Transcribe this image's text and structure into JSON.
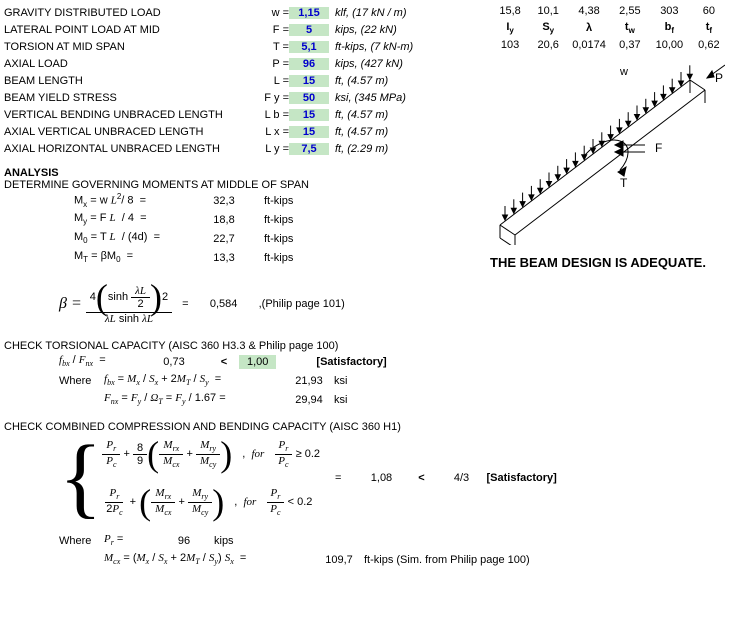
{
  "inputs": [
    {
      "label": "GRAVITY DISTRIBUTED LOAD",
      "sym": "w =",
      "val": "1,15",
      "unit": "klf, (17 kN / m)"
    },
    {
      "label": "LATERAL POINT LOAD AT MID",
      "sym": "F =",
      "val": "5",
      "unit": "kips, (22 kN)"
    },
    {
      "label": "TORSION AT MID SPAN",
      "sym": "T =",
      "val": "5,1",
      "unit": "ft-kips, (7 kN-m)"
    },
    {
      "label": "AXIAL LOAD",
      "sym": "P =",
      "val": "96",
      "unit": "kips, (427 kN)"
    },
    {
      "label": "BEAM LENGTH",
      "sym": "L =",
      "val": "15",
      "unit": "ft, (4.57 m)"
    },
    {
      "label": "BEAM YIELD STRESS",
      "sym": "F y =",
      "val": "50",
      "unit": "ksi, (345 MPa)"
    },
    {
      "label": "VERTICAL BENDING UNBRACED LENGTH",
      "sym": "L b =",
      "val": "15",
      "unit": "ft, (4.57 m)"
    },
    {
      "label": "AXIAL VERTICAL UNBRACED LENGTH",
      "sym": "L x =",
      "val": "15",
      "unit": "ft, (4.57 m)"
    },
    {
      "label": "AXIAL HORIZONTAL UNBRACED LENGTH",
      "sym": "L y =",
      "val": "7,5",
      "unit": "ft, (2.29 m)"
    }
  ],
  "proptable": {
    "r1": [
      "15,8",
      "10,1",
      "4,38",
      "2,55",
      "303",
      "60"
    ],
    "h2": [
      "I_y",
      "S_y",
      "λ",
      "t_w",
      "b_f",
      "t_f"
    ],
    "r2": [
      "103",
      "20,6",
      "0,0174",
      "0,37",
      "10,00",
      "0,62"
    ]
  },
  "analysis_title": "ANALYSIS",
  "moments_title": "DETERMINE GOVERNING MOMENTS AT MIDDLE OF SPAN",
  "moments": [
    {
      "sym": "M_x = w L^2/ 8  =",
      "val": "32,3",
      "unit": "ft-kips"
    },
    {
      "sym": "M_y = F L  / 4  =",
      "val": "18,8",
      "unit": "ft-kips"
    },
    {
      "sym": "M_0 = T L  / (4d)  =",
      "val": "22,7",
      "unit": "ft-kips"
    },
    {
      "sym": "M_T = βM_0  =",
      "val": "13,3",
      "unit": "ft-kips"
    }
  ],
  "beta": {
    "val": "0,584",
    "note": ",(Philip page 101)"
  },
  "torsion_title": "CHECK TORSIONAL CAPACITY  (AISC 360 H3.3 & Philip page 100)",
  "torsion": {
    "ratio": "0,73",
    "limit": "1,00",
    "status": "[Satisfactory]",
    "fbx": "21,93",
    "fnx": "29,94"
  },
  "combined_title": "CHECK COMBINED COMPRESSION AND BENDING CAPACITY (AISC 360 H1)",
  "combined": {
    "val": "1,08",
    "limit": "4/3",
    "status": "[Satisfactory]"
  },
  "where_pr": {
    "label": "P_r =",
    "val": "96",
    "unit": "kips"
  },
  "last": {
    "expr": "M_cx = (M_x / S_x + 2M_T / S_y) S_x   =",
    "val": "109,7",
    "unit": "ft-kips  (Sim. from Philip page 100)"
  },
  "adequate": "THE BEAM DESIGN IS ADEQUATE.",
  "diag": {
    "w": "w",
    "P": "P",
    "F": "F",
    "T": "T"
  },
  "colors": {
    "input_bg": "#c5e6c5",
    "input_fg": "#0000cc"
  }
}
